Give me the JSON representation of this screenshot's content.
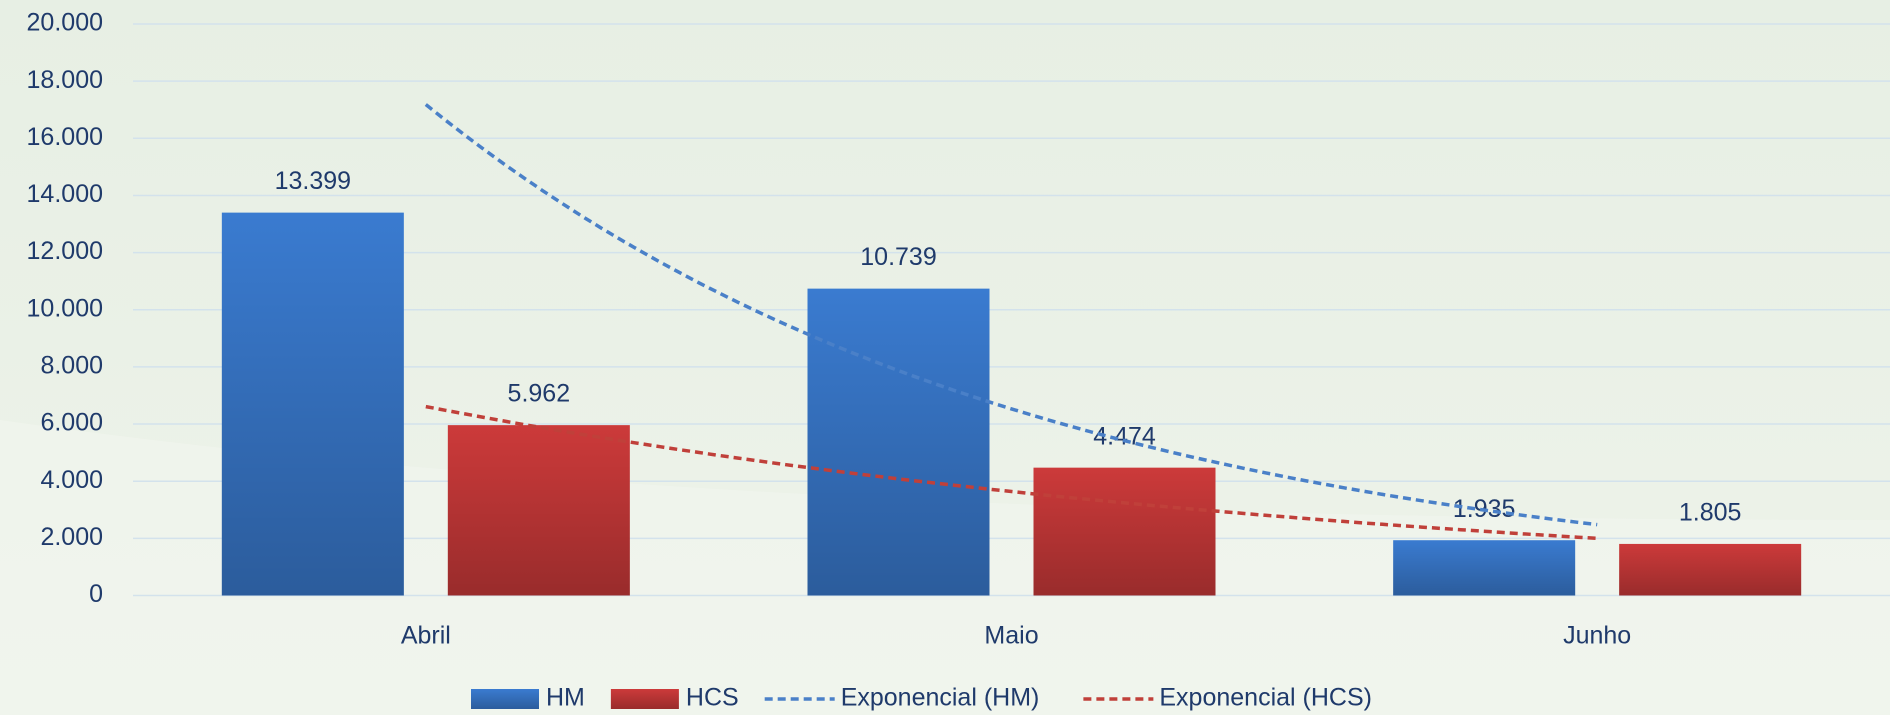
{
  "chart_data": {
    "type": "bar",
    "categories": [
      "Abril",
      "Maio",
      "Junho"
    ],
    "series": [
      {
        "name": "HM",
        "color": "#3a7bd0",
        "values": [
          13399,
          10739,
          1935
        ],
        "value_labels": [
          "13.399",
          "10.739",
          "1.935"
        ]
      },
      {
        "name": "HCS",
        "color": "#cc3a3a",
        "values": [
          5962,
          4474,
          1805
        ],
        "value_labels": [
          "5.962",
          "4.474",
          "1.805"
        ]
      }
    ],
    "trendlines": [
      {
        "name": "Exponencial (HM)",
        "series": 0,
        "fit": "exponential",
        "color": "#4a80c8"
      },
      {
        "name": "Exponencial (HCS)",
        "series": 1,
        "fit": "exponential",
        "color": "#c0403a"
      }
    ],
    "ylim": [
      0,
      20000
    ],
    "yticks": [
      0,
      {
        "value": 2000,
        "label": "2.000"
      },
      {
        "value": 4000,
        "label": "4.000"
      },
      {
        "value": 6000,
        "label": "6.000"
      },
      {
        "value": 8000,
        "label": "8.000"
      },
      {
        "value": 10000,
        "label": "10.000"
      },
      {
        "value": 12000,
        "label": "12.000"
      },
      {
        "value": 14000,
        "label": "14.000"
      },
      {
        "value": 16000,
        "label": "16.000"
      },
      {
        "value": 18000,
        "label": "18.000"
      },
      {
        "value": 20000,
        "label": "20.000"
      }
    ],
    "grid": true,
    "legend": "bottom"
  }
}
